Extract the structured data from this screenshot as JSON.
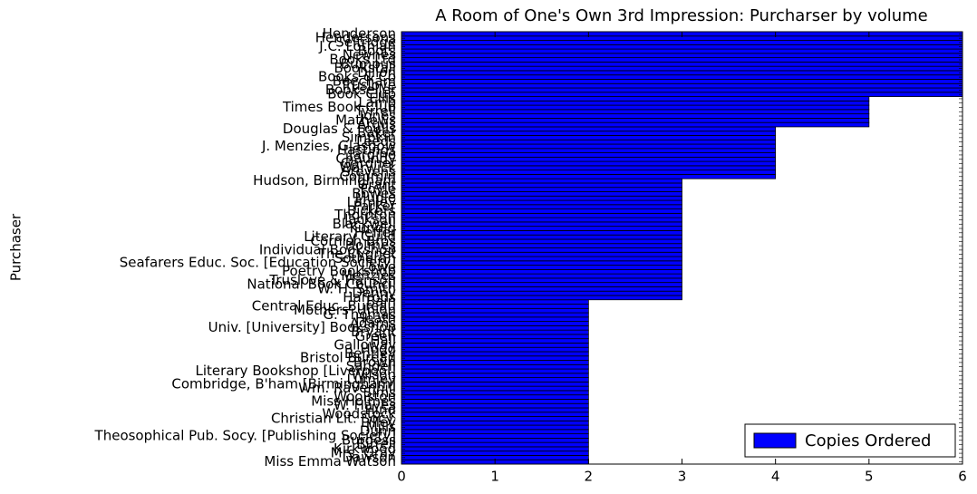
{
  "chart_data": {
    "type": "barh",
    "title": "A Room of One's Own 3rd Impression: Purcharser by volume",
    "ylabel": "Purchaser",
    "legend": "lower right",
    "categories": [
      "Miss Emma Watson",
      "Dawson",
      "Mrs. Gray",
      "Kirkwood",
      "Birrell",
      "Burgess",
      "Theosophical Pub. Socy. [Publishing Society]",
      "Dunn",
      "Mills",
      "Lilley",
      "Christian Lit. Socy.",
      "Woodstock",
      "Hind",
      "W. Hayes",
      "Miss Holmes",
      "Woolston",
      "Sims",
      "Wm. Ravenhill",
      "Combridge, B'ham [Birmingham]",
      "Lumley",
      "Wilson",
      "Literary Bookshop [Liverpool]",
      "Sandell",
      "Brown",
      "Bristol Bureau",
      "Bentley",
      "Hogg",
      "Galloway",
      "Hall",
      "Green",
      "Bryant",
      "Univ. [University] Bookshop",
      "Adams",
      "Heath",
      "G. Thomas",
      "Mothers' Union",
      "Central Educ. Bureau",
      "Bain",
      "Harrods",
      "Denny",
      "W. H. Smith",
      "National Book Council",
      "Truslove & Hanson",
      "Menzies",
      "Poetry Bookshop",
      "Lowe",
      "Seafarers Educ. Soc. [Education Society]",
      "Sotheran",
      "The Cygnet",
      "Individual Bookshop",
      "Holmes",
      "Cornish Bros",
      "Literary Guild",
      "Heffer",
      "Kundig",
      "Blackwell",
      "Jackson",
      "Thornton",
      "Bickers",
      "Parker",
      "Lamley",
      "Mudie",
      "Bowes",
      "Foyle",
      "Grant",
      "Hudson, Birmingham",
      "Commin",
      "Stevens",
      "Warwick",
      "Gardner",
      "Chaundy",
      "Jardine",
      "Hastings",
      "J. Menzies, Glasgow",
      "Leeds",
      "Simpkin",
      "Baker",
      "Douglas & Foulis",
      "Argus",
      "Mathews",
      "Jones",
      "Tyrrell",
      "Times Book Club",
      "Lamb",
      "Ellis",
      "Book Club",
      "Bookseller",
      "Truslove",
      "Beecham",
      "Books & Co",
      "Dillon",
      "Bookstall",
      "Bumpus",
      "Books Ltd",
      "Newnes",
      "Boots",
      "J.C. Lothian",
      "Selfridge",
      "Hendersons",
      "Henderson"
    ],
    "series": [
      {
        "name": "Copies Ordered",
        "color": "#0000ff",
        "values": [
          2,
          2,
          2,
          2,
          2,
          2,
          2,
          2,
          2,
          2,
          2,
          2,
          2,
          2,
          2,
          2,
          2,
          2,
          2,
          2,
          2,
          2,
          2,
          2,
          2,
          2,
          2,
          2,
          2,
          2,
          2,
          2,
          2,
          2,
          2,
          2,
          2,
          2,
          3,
          3,
          3,
          3,
          3,
          3,
          3,
          3,
          3,
          3,
          3,
          3,
          3,
          3,
          3,
          3,
          3,
          3,
          3,
          3,
          3,
          3,
          3,
          3,
          3,
          3,
          3,
          3,
          4,
          4,
          4,
          4,
          4,
          4,
          4,
          4,
          4,
          4,
          4,
          4,
          5,
          5,
          5,
          5,
          5,
          5,
          5,
          6,
          6,
          6,
          6,
          6,
          6,
          6,
          6,
          6,
          6,
          6,
          6,
          6,
          6,
          6
        ]
      }
    ],
    "xlim": [
      0,
      6
    ],
    "xticks": [
      0,
      1,
      2,
      3,
      4,
      5,
      6
    ]
  }
}
